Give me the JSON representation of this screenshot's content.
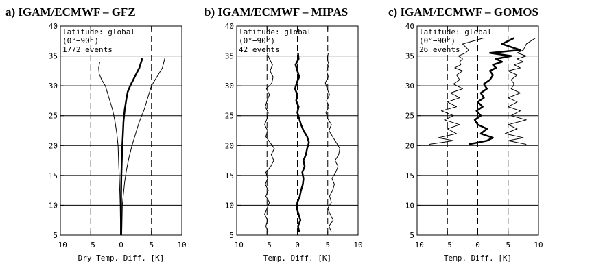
{
  "chart_data": [
    {
      "type": "line",
      "title": "a) IGAM/ECMWF – GFZ",
      "xlabel": "Dry Temp. Diff. [K]",
      "ylabel": "",
      "xlim": [
        -10,
        10
      ],
      "ylim": [
        5,
        40
      ],
      "x_ticks": [
        "−10",
        "−5",
        "0",
        "5",
        "10"
      ],
      "y_ticks": [
        "5",
        "10",
        "15",
        "20",
        "25",
        "30",
        "35",
        "40"
      ],
      "grid": "horizontal lines every 5 km; dashed vertical lines at −5, 0, 5",
      "annotations": [
        "latitude: global",
        "(0°−90°)",
        "1772 events"
      ],
      "series": [
        {
          "x": [
            -0.1,
            -0.1,
            -0.15,
            -0.2,
            -0.3,
            -0.4,
            -0.5,
            -0.7,
            -1.0,
            -1.4,
            -2.0,
            -2.6,
            -3.2,
            -3.6,
            -3.7,
            -3.5
          ],
          "y": [
            5,
            7,
            10,
            12,
            15,
            17,
            20,
            22,
            24,
            26,
            28,
            30,
            31,
            32,
            33,
            34
          ]
        },
        {
          "x": [
            0.0,
            0.0,
            0.0,
            0.0,
            0.05,
            0.1,
            0.2,
            0.3,
            0.4,
            0.6,
            0.9,
            1.1,
            1.5,
            2.0,
            2.5,
            3.0,
            3.5
          ],
          "y": [
            5,
            7,
            10,
            12,
            15,
            17,
            20,
            22,
            24,
            26,
            28,
            29,
            30,
            31,
            32,
            33,
            34.6
          ]
        },
        {
          "x": [
            0.1,
            0.15,
            0.2,
            0.4,
            0.6,
            0.9,
            1.3,
            1.8,
            2.4,
            3.0,
            3.8,
            4.4,
            5.0,
            5.6,
            6.2,
            6.8,
            7.2
          ],
          "y": [
            5,
            7,
            10,
            12,
            14,
            16,
            18,
            20,
            22,
            24,
            26,
            28,
            30,
            31,
            32,
            33,
            34.6
          ]
        }
      ]
    },
    {
      "type": "line",
      "title": "b) IGAM/ECMWF – MIPAS",
      "xlabel": "Temp. Diff. [K]",
      "ylabel": "",
      "xlim": [
        -10,
        10
      ],
      "ylim": [
        5,
        40
      ],
      "x_ticks": [
        "−10",
        "−5",
        "0",
        "5",
        "10"
      ],
      "y_ticks": [
        "5",
        "10",
        "15",
        "20",
        "25",
        "30",
        "35",
        "40"
      ],
      "grid": "horizontal lines every 5 km; dashed vertical lines at −5, 0, 5",
      "annotations": [
        "latitude: global",
        "(0°−90°)",
        "42 events"
      ],
      "series": [
        {
          "x": [
            -4.8,
            -5.2,
            -4.9,
            -5.4,
            -5.0,
            -4.6,
            -5.2,
            -4.8,
            -5.3,
            -4.9,
            -5.2,
            -4.4,
            -3.9,
            -4.3,
            -3.8,
            -4.5,
            -5.2,
            -4.9,
            -5.4,
            -5.0,
            -4.8,
            -5.3,
            -5.0,
            -4.6,
            -5.1,
            -4.2,
            -4.0,
            -4.5,
            -4.1,
            -4.6,
            -5.0
          ],
          "y": [
            5.5,
            6.5,
            7.5,
            8.5,
            9.5,
            10.5,
            11.5,
            12.5,
            13.5,
            14.5,
            15.5,
            16.5,
            17.5,
            18.5,
            19.5,
            20.5,
            21.5,
            22.5,
            23.5,
            24.5,
            25.5,
            26.5,
            27.5,
            28.5,
            29.5,
            30.5,
            31.5,
            32.5,
            33.5,
            34.5,
            35.5
          ]
        },
        {
          "x": [
            0.3,
            0.1,
            0.5,
            0.2,
            -0.1,
            0.0,
            0.4,
            0.6,
            0.9,
            1.0,
            0.8,
            1.2,
            1.0,
            1.4,
            1.6,
            1.9,
            1.6,
            1.0,
            0.6,
            0.3,
            0.0,
            0.2,
            -0.2,
            0.0,
            -0.4,
            -0.1,
            0.3,
            0.0,
            -0.3,
            0.2,
            0.1
          ],
          "y": [
            5.5,
            6.5,
            7.5,
            8.5,
            9.5,
            10.5,
            11.5,
            12.5,
            13.5,
            14.5,
            15.5,
            16.5,
            17.5,
            18.5,
            19.5,
            20.5,
            21.5,
            22.5,
            23.5,
            24.5,
            25.5,
            26.5,
            27.5,
            28.5,
            29.5,
            30.5,
            31.5,
            32.5,
            33.5,
            34.5,
            35.5
          ]
        },
        {
          "x": [
            5.6,
            5.2,
            5.9,
            5.4,
            5.0,
            5.6,
            5.3,
            5.8,
            6.1,
            5.7,
            6.3,
            6.7,
            6.2,
            6.8,
            7.0,
            6.4,
            5.8,
            5.2,
            5.6,
            5.0,
            4.7,
            5.2,
            4.8,
            5.3,
            4.9,
            4.6,
            5.1,
            4.8,
            5.2,
            4.9,
            5.1
          ],
          "y": [
            5.5,
            6.5,
            7.5,
            8.5,
            9.5,
            10.5,
            11.5,
            12.5,
            13.5,
            14.5,
            15.5,
            16.5,
            17.5,
            18.5,
            19.5,
            20.5,
            21.5,
            22.5,
            23.5,
            24.5,
            25.5,
            26.5,
            27.5,
            28.5,
            29.5,
            30.5,
            31.5,
            32.5,
            33.5,
            34.5,
            35.5
          ]
        }
      ]
    },
    {
      "type": "line",
      "title": "c) IGAM/ECMWF – GOMOS",
      "xlabel": "Temp. Diff. [K]",
      "ylabel": "",
      "xlim": [
        -10,
        10
      ],
      "ylim": [
        5,
        40
      ],
      "x_ticks": [
        "−10",
        "−5",
        "0",
        "5",
        "10"
      ],
      "y_ticks": [
        "5",
        "10",
        "15",
        "20",
        "25",
        "30",
        "35",
        "40"
      ],
      "grid": "horizontal lines every 5 km; dashed vertical lines at −5, 0, 5",
      "annotations": [
        "latitude: global",
        "(0°−90°)",
        "26 events"
      ],
      "series": [
        {
          "x": [
            -8.0,
            -4.0,
            -6.5,
            -3.5,
            -5.0,
            -3.0,
            -5.5,
            -4.0,
            -6.0,
            -3.5,
            -5.0,
            -3.0,
            -4.5,
            -2.5,
            -4.0,
            -3.0,
            -3.5,
            -2.5,
            -3.8,
            -2.8,
            -3.0,
            -2.5,
            -3.2,
            -2.0,
            -1.5,
            -2.5,
            1.0
          ],
          "y": [
            20.2,
            20.8,
            21.3,
            22.0,
            22.8,
            23.5,
            24.3,
            25.0,
            25.8,
            26.5,
            27.3,
            28.0,
            28.8,
            29.5,
            30.3,
            31.0,
            31.8,
            32.5,
            33.0,
            33.5,
            34.0,
            34.5,
            35.0,
            35.5,
            36.0,
            37.0,
            38.0
          ]
        },
        {
          "x": [
            -1.5,
            1.5,
            2.5,
            0.5,
            1.5,
            0.0,
            -0.5,
            0.5,
            -0.2,
            0.8,
            0.0,
            1.0,
            0.5,
            1.5,
            1.0,
            2.0,
            2.5,
            2.0,
            3.0,
            2.5,
            4.0,
            3.0,
            5.5,
            2.0,
            7.0,
            4.0,
            6.0
          ],
          "y": [
            20.2,
            20.8,
            21.3,
            22.0,
            22.8,
            23.5,
            24.3,
            25.0,
            25.8,
            26.5,
            27.3,
            28.0,
            28.8,
            29.5,
            30.3,
            31.0,
            31.8,
            32.5,
            33.0,
            33.5,
            34.0,
            34.5,
            35.0,
            35.5,
            36.0,
            37.0,
            38.0
          ]
        },
        {
          "x": [
            8.0,
            5.0,
            7.5,
            4.5,
            6.5,
            5.0,
            8.0,
            5.5,
            7.0,
            5.0,
            6.5,
            5.0,
            7.0,
            5.5,
            6.0,
            5.5,
            6.5,
            5.0,
            7.0,
            6.0,
            7.5,
            6.5,
            8.0,
            6.5,
            7.5,
            8.0,
            9.5
          ],
          "y": [
            20.2,
            20.8,
            21.3,
            22.0,
            22.8,
            23.5,
            24.3,
            25.0,
            25.8,
            26.5,
            27.3,
            28.0,
            28.8,
            29.5,
            30.3,
            31.0,
            31.8,
            32.5,
            33.0,
            33.5,
            34.0,
            34.5,
            35.0,
            35.5,
            36.0,
            37.0,
            38.0
          ]
        }
      ]
    }
  ]
}
